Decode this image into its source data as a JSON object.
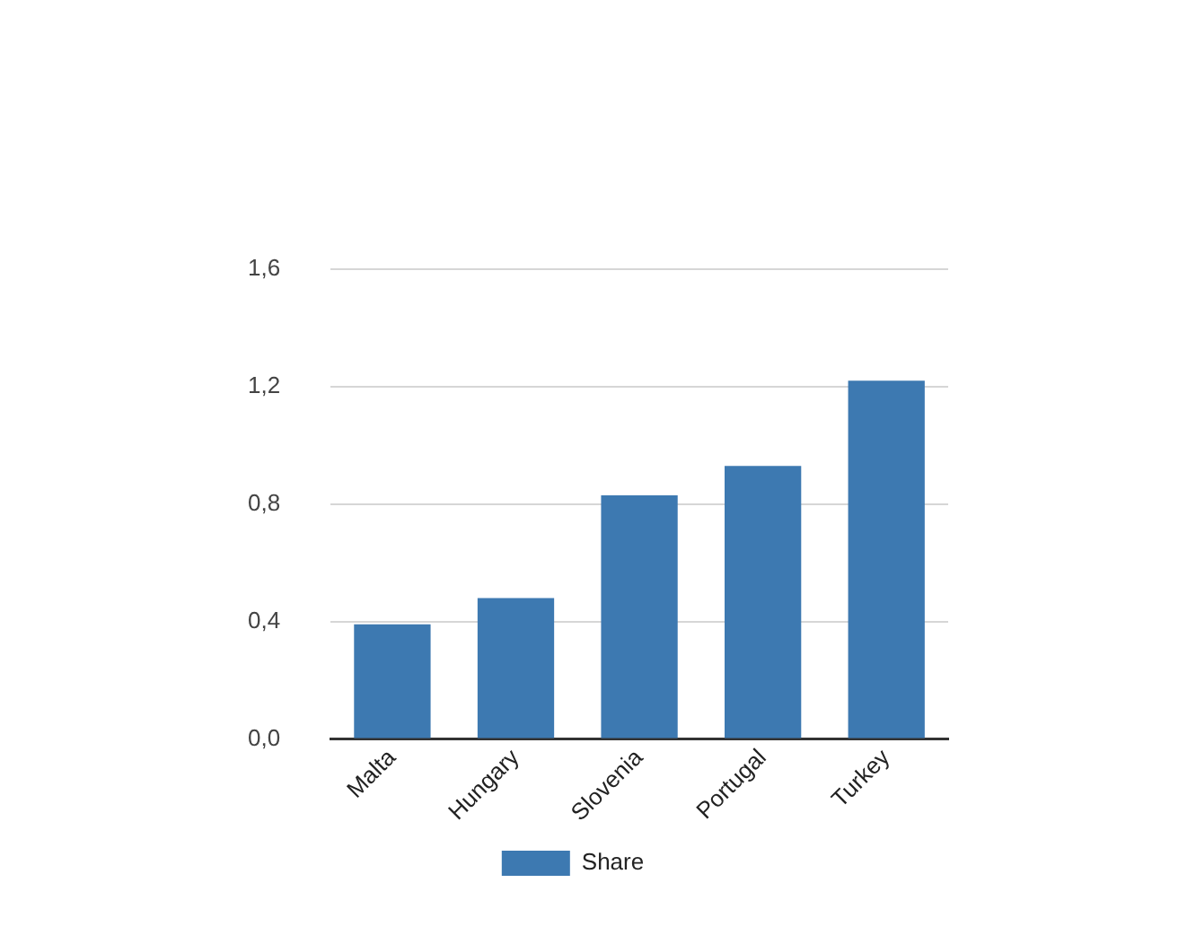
{
  "chart_data": {
    "type": "bar",
    "categories": [
      "Malta",
      "Hungary",
      "Slovenia",
      "Portugal",
      "Turkey"
    ],
    "series": [
      {
        "name": "Share",
        "color": "#3d79b1",
        "values": [
          0.39,
          0.48,
          0.83,
          0.93,
          1.22
        ]
      }
    ],
    "ylim": [
      0,
      1.6
    ],
    "yticks": [
      {
        "value": 0,
        "label": "0,0"
      },
      {
        "value": 0.4,
        "label": "0,4"
      },
      {
        "value": 0.8,
        "label": "0,8"
      },
      {
        "value": 1.2,
        "label": "1,2"
      },
      {
        "value": 1.6,
        "label": "1,6"
      }
    ],
    "grid": "y",
    "legend": "bottom"
  }
}
